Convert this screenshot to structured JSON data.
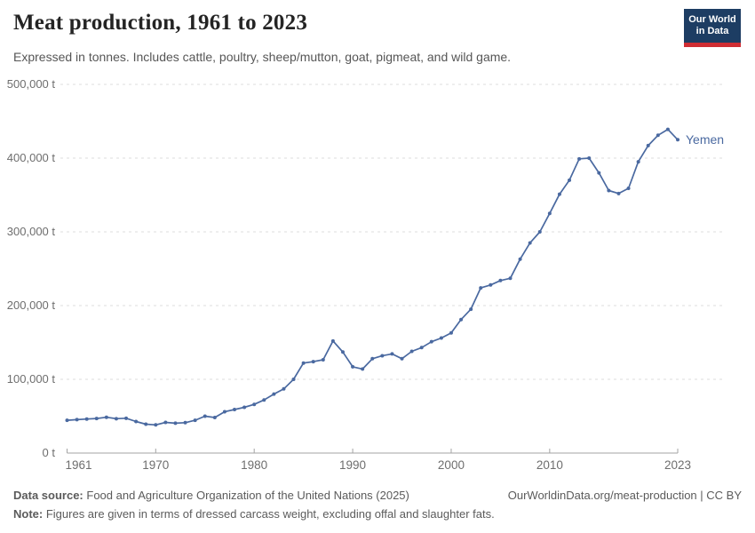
{
  "logo": {
    "line1": "Our World",
    "line2": "in Data"
  },
  "footer": {
    "data_source_label": "Data source:",
    "data_source_text": "Food and Agriculture Organization of the United Nations (2025)",
    "attribution": "OurWorldinData.org/meat-production | CC BY",
    "note_label": "Note:",
    "note_text": "Figures are given in terms of dressed carcass weight, excluding offal and slaughter fats."
  },
  "colors": {
    "line": "#4a69a0",
    "grid": "#dedede",
    "axis": "#a3a3a3",
    "tick_text": "#6e6e6e",
    "logo_bg": "#1d3d63",
    "logo_red": "#cf2d33"
  },
  "chart_data": {
    "type": "line",
    "title": "Meat production, 1961 to 2023",
    "subtitle": "Expressed in tonnes. Includes cattle, poultry, sheep/mutton, goat, pigmeat, and wild game.",
    "xlabel": "",
    "ylabel": "",
    "ylim": [
      0,
      500000
    ],
    "xlim": [
      1961,
      2023
    ],
    "grid": "dashed-horizontal",
    "legend_position": "end-of-line-label",
    "y_ticks": [
      {
        "value": 0,
        "label": "0 t"
      },
      {
        "value": 100000,
        "label": "100,000 t"
      },
      {
        "value": 200000,
        "label": "200,000 t"
      },
      {
        "value": 300000,
        "label": "300,000 t"
      },
      {
        "value": 400000,
        "label": "400,000 t"
      },
      {
        "value": 500000,
        "label": "500,000 t"
      }
    ],
    "x_ticks": [
      {
        "year": 1961,
        "label": "1961",
        "align": "start"
      },
      {
        "year": 1970,
        "label": "1970"
      },
      {
        "year": 1980,
        "label": "1980"
      },
      {
        "year": 1990,
        "label": "1990"
      },
      {
        "year": 2000,
        "label": "2000"
      },
      {
        "year": 2010,
        "label": "2010"
      },
      {
        "year": 2023,
        "label": "2023"
      }
    ],
    "x": [
      1961,
      1962,
      1963,
      1964,
      1965,
      1966,
      1967,
      1968,
      1969,
      1970,
      1971,
      1972,
      1973,
      1974,
      1975,
      1976,
      1977,
      1978,
      1979,
      1980,
      1981,
      1982,
      1983,
      1984,
      1985,
      1986,
      1987,
      1988,
      1989,
      1990,
      1991,
      1992,
      1993,
      1994,
      1995,
      1996,
      1997,
      1998,
      1999,
      2000,
      2001,
      2002,
      2003,
      2004,
      2005,
      2006,
      2007,
      2008,
      2009,
      2010,
      2011,
      2012,
      2013,
      2014,
      2015,
      2016,
      2017,
      2018,
      2019,
      2020,
      2021,
      2022,
      2023
    ],
    "series": [
      {
        "name": "Yemen",
        "unit": "t",
        "values": [
          44500,
          45300,
          46100,
          46900,
          48500,
          46600,
          47200,
          42800,
          39200,
          38200,
          41600,
          40500,
          41200,
          44500,
          50000,
          48200,
          56000,
          59000,
          62000,
          66000,
          72000,
          80000,
          87000,
          100000,
          122000,
          124000,
          126500,
          152000,
          137000,
          117000,
          114000,
          128000,
          132000,
          134500,
          128000,
          138000,
          143000,
          151000,
          156000,
          163000,
          181000,
          195000,
          224000,
          228000,
          234000,
          237000,
          263000,
          285000,
          300000,
          325000,
          351000,
          370000,
          399000,
          400000,
          380000,
          356000,
          352000,
          359000,
          395000,
          417000,
          431000,
          439000,
          425000
        ]
      }
    ]
  }
}
